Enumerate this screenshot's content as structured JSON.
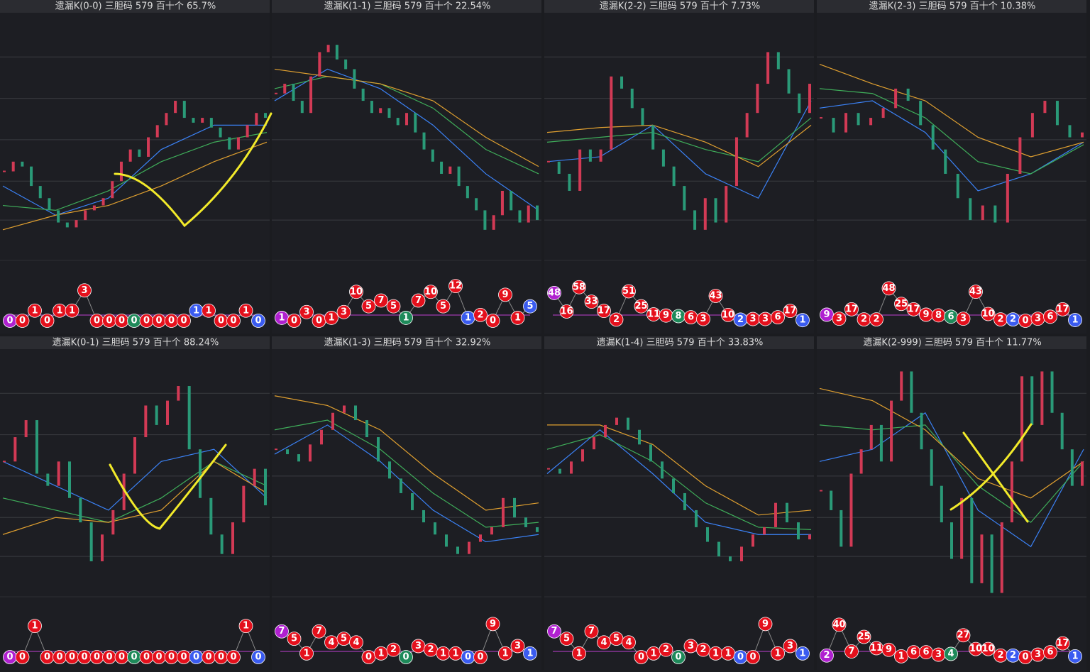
{
  "chart_data": [
    {
      "type": "step",
      "title": "遗漏K(0-0)  三胆码  579  百十个  65.7%",
      "ylim": [
        0,
        100
      ],
      "values": [
        36,
        40,
        38,
        30,
        25,
        20,
        15,
        13,
        16,
        20,
        22,
        25,
        32,
        40,
        45,
        42,
        50,
        55,
        60,
        65,
        58,
        56,
        58,
        54,
        50,
        45,
        50,
        55,
        60,
        58
      ],
      "ma": [
        {
          "color": "#3b82f6",
          "values": [
            30,
            18,
            25,
            45,
            55,
            55
          ]
        },
        {
          "color": "#3fae5a",
          "values": [
            22,
            20,
            28,
            40,
            48,
            52
          ]
        },
        {
          "color": "#e0a030",
          "values": [
            12,
            18,
            22,
            30,
            40,
            48
          ]
        }
      ],
      "balls": {
        "ylim": [
          0,
          4
        ],
        "values": [
          0,
          0,
          1,
          0,
          1,
          1,
          3,
          0,
          0,
          0,
          0,
          0,
          0,
          0,
          0,
          1,
          1,
          0,
          0,
          1,
          0
        ],
        "special": [
          {
            "index": 0,
            "color": "#b020d0"
          },
          {
            "index": 10,
            "color": "#1e8a5a"
          },
          {
            "index": 15,
            "color": "#3a5bf0"
          },
          {
            "index": 20,
            "color": "#3a5bf0"
          }
        ]
      }
    },
    {
      "type": "step",
      "title": "遗漏K(1-1)  三胆码  579  百十个  22.54%",
      "ylim": [
        0,
        100
      ],
      "values": [
        68,
        72,
        65,
        60,
        75,
        85,
        88,
        82,
        78,
        70,
        65,
        60,
        62,
        58,
        55,
        60,
        52,
        45,
        40,
        35,
        38,
        30,
        25,
        20,
        12,
        18,
        28,
        20,
        15,
        22,
        16
      ],
      "ma": [
        {
          "color": "#3b82f6",
          "values": [
            65,
            78,
            70,
            55,
            35,
            20
          ]
        },
        {
          "color": "#3fae5a",
          "values": [
            70,
            75,
            72,
            62,
            45,
            35
          ]
        },
        {
          "color": "#e0a030",
          "values": [
            78,
            75,
            72,
            65,
            50,
            38
          ]
        }
      ],
      "balls": {
        "ylim": [
          0,
          14
        ],
        "values": [
          1,
          0,
          3,
          0,
          1,
          3,
          10,
          5,
          7,
          5,
          1,
          7,
          10,
          5,
          12,
          1,
          2,
          0,
          9,
          1,
          5
        ],
        "special": [
          {
            "index": 0,
            "color": "#b020d0"
          },
          {
            "index": 10,
            "color": "#1e8a5a"
          },
          {
            "index": 15,
            "color": "#3a5bf0"
          },
          {
            "index": 20,
            "color": "#3a5bf0"
          }
        ]
      }
    },
    {
      "type": "step",
      "title": "遗漏K(2-2)  三胆码  579  百十个  7.73%",
      "ylim": [
        0,
        100
      ],
      "values": [
        40,
        35,
        28,
        45,
        40,
        45,
        75,
        70,
        62,
        55,
        45,
        38,
        30,
        20,
        12,
        25,
        15,
        30,
        50,
        60,
        72,
        85,
        78,
        68,
        60,
        72
      ],
      "ma": [
        {
          "color": "#3b82f6",
          "values": [
            40,
            42,
            55,
            35,
            25,
            65
          ]
        },
        {
          "color": "#3fae5a",
          "values": [
            48,
            50,
            52,
            45,
            40,
            58
          ]
        },
        {
          "color": "#e0a030",
          "values": [
            52,
            54,
            55,
            48,
            38,
            55
          ]
        }
      ],
      "balls": {
        "ylim": [
          0,
          70
        ],
        "values": [
          48,
          16,
          58,
          33,
          17,
          2,
          51,
          25,
          11,
          9,
          8,
          6,
          3,
          43,
          10,
          2,
          3,
          3,
          6,
          17,
          1
        ],
        "special": [
          {
            "index": 0,
            "color": "#b020d0"
          },
          {
            "index": 10,
            "color": "#1e8a5a"
          },
          {
            "index": 15,
            "color": "#3a5bf0"
          },
          {
            "index": 20,
            "color": "#3a5bf0"
          }
        ]
      }
    },
    {
      "type": "step",
      "title": "遗漏K(2-3)  三胆码  579  百十个  10.38%",
      "ylim": [
        0,
        100
      ],
      "values": [
        58,
        52,
        60,
        55,
        58,
        62,
        70,
        65,
        55,
        45,
        35,
        25,
        16,
        22,
        15,
        35,
        50,
        60,
        65,
        55,
        50,
        52
      ],
      "ma": [
        {
          "color": "#3b82f6",
          "values": [
            62,
            65,
            52,
            28,
            35,
            48
          ]
        },
        {
          "color": "#3fae5a",
          "values": [
            70,
            68,
            58,
            40,
            35,
            47
          ]
        },
        {
          "color": "#e0a030",
          "values": [
            80,
            72,
            65,
            50,
            42,
            48
          ]
        }
      ],
      "balls": {
        "ylim": [
          0,
          60
        ],
        "values": [
          9,
          3,
          17,
          2,
          2,
          48,
          25,
          17,
          9,
          8,
          6,
          3,
          43,
          10,
          2,
          2,
          0,
          3,
          6,
          17,
          1
        ],
        "special": [
          {
            "index": 0,
            "color": "#b020d0"
          },
          {
            "index": 10,
            "color": "#1e8a5a"
          },
          {
            "index": 15,
            "color": "#3a5bf0"
          },
          {
            "index": 20,
            "color": "#3a5bf0"
          }
        ]
      }
    },
    {
      "type": "step",
      "title": "遗漏K(0-1)  三胆码  579  百十个  88.24%",
      "ylim": [
        0,
        100
      ],
      "values": [
        55,
        65,
        72,
        50,
        45,
        55,
        40,
        30,
        14,
        25,
        35,
        50,
        65,
        78,
        70,
        80,
        86,
        60,
        40,
        25,
        17,
        30,
        45,
        52,
        37
      ],
      "ma": [
        {
          "color": "#3b82f6",
          "values": [
            55,
            45,
            35,
            55,
            60,
            40
          ]
        },
        {
          "color": "#3fae5a",
          "values": [
            40,
            35,
            30,
            40,
            55,
            45
          ]
        },
        {
          "color": "#e0a030",
          "values": [
            25,
            32,
            30,
            35,
            55,
            42
          ]
        }
      ],
      "balls": {
        "ylim": [
          0,
          1.3
        ],
        "values": [
          0,
          0,
          1,
          0,
          0,
          0,
          0,
          0,
          0,
          0,
          0,
          0,
          0,
          0,
          0,
          0,
          0,
          0,
          0,
          1,
          0
        ],
        "special": [
          {
            "index": 0,
            "color": "#b020d0"
          },
          {
            "index": 10,
            "color": "#1e8a5a"
          },
          {
            "index": 15,
            "color": "#3a5bf0"
          },
          {
            "index": 20,
            "color": "#3a5bf0"
          }
        ]
      }
    },
    {
      "type": "step",
      "title": "遗漏K(1-3)  三胆码  579  百十个  32.92%",
      "ylim": [
        0,
        100
      ],
      "values": [
        60,
        58,
        55,
        62,
        68,
        75,
        78,
        72,
        65,
        55,
        48,
        42,
        35,
        30,
        25,
        20,
        17,
        22,
        25,
        28,
        40,
        32,
        28,
        26
      ],
      "ma": [
        {
          "color": "#3b82f6",
          "values": [
            58,
            70,
            55,
            35,
            22,
            25
          ]
        },
        {
          "color": "#3fae5a",
          "values": [
            68,
            72,
            60,
            42,
            28,
            30
          ]
        },
        {
          "color": "#e0a030",
          "values": [
            82,
            78,
            68,
            50,
            35,
            38
          ]
        }
      ],
      "balls": {
        "ylim": [
          0,
          11
        ],
        "values": [
          7,
          5,
          1,
          7,
          4,
          5,
          4,
          0,
          1,
          2,
          0,
          3,
          2,
          1,
          1,
          0,
          0,
          9,
          1,
          3,
          1
        ],
        "special": [
          {
            "index": 0,
            "color": "#b020d0"
          },
          {
            "index": 10,
            "color": "#1e8a5a"
          },
          {
            "index": 15,
            "color": "#3a5bf0"
          },
          {
            "index": 20,
            "color": "#3a5bf0"
          }
        ]
      }
    },
    {
      "type": "step",
      "title": "遗漏K(1-4)  三胆码  579  百十个  33.83%",
      "ylim": [
        0,
        100
      ],
      "values": [
        52,
        50,
        55,
        60,
        65,
        70,
        73,
        68,
        62,
        55,
        48,
        42,
        35,
        28,
        22,
        16,
        14,
        20,
        25,
        28,
        38,
        30,
        23,
        25
      ],
      "ma": [
        {
          "color": "#3b82f6",
          "values": [
            50,
            68,
            50,
            30,
            25,
            25
          ]
        },
        {
          "color": "#3fae5a",
          "values": [
            60,
            66,
            55,
            38,
            28,
            27
          ]
        },
        {
          "color": "#e0a030",
          "values": [
            70,
            70,
            62,
            45,
            33,
            35
          ]
        }
      ],
      "balls": {
        "ylim": [
          0,
          11
        ],
        "values": [
          7,
          5,
          1,
          7,
          4,
          5,
          4,
          0,
          1,
          2,
          0,
          3,
          2,
          1,
          1,
          0,
          0,
          9,
          1,
          3,
          1
        ],
        "special": [
          {
            "index": 0,
            "color": "#b020d0"
          },
          {
            "index": 10,
            "color": "#1e8a5a"
          },
          {
            "index": 15,
            "color": "#3a5bf0"
          },
          {
            "index": 20,
            "color": "#3a5bf0"
          }
        ]
      }
    },
    {
      "type": "step",
      "title": "遗漏K(2-999)  三胆码  579  百十个  11.77%",
      "ylim": [
        0,
        100
      ],
      "values": [
        43,
        35,
        20,
        50,
        60,
        70,
        55,
        80,
        92,
        75,
        60,
        45,
        30,
        15,
        40,
        5,
        25,
        1,
        30,
        55,
        90,
        70,
        92,
        75,
        60,
        45,
        55
      ],
      "ma": [
        {
          "color": "#3b82f6",
          "values": [
            55,
            60,
            75,
            35,
            20,
            60
          ]
        },
        {
          "color": "#3fae5a",
          "values": [
            70,
            68,
            70,
            45,
            30,
            55
          ]
        },
        {
          "color": "#e0a030",
          "values": [
            85,
            80,
            68,
            48,
            40,
            55
          ]
        }
      ],
      "balls": {
        "ylim": [
          0,
          50
        ],
        "values": [
          2,
          40,
          7,
          25,
          11,
          9,
          1,
          6,
          6,
          3,
          4,
          27,
          10,
          10,
          2,
          2,
          0,
          3,
          6,
          17,
          1
        ],
        "special": [
          {
            "index": 0,
            "color": "#b020d0"
          },
          {
            "index": 10,
            "color": "#1e8a5a"
          },
          {
            "index": 15,
            "color": "#3a5bf0"
          },
          {
            "index": 20,
            "color": "#3a5bf0"
          }
        ]
      }
    }
  ]
}
